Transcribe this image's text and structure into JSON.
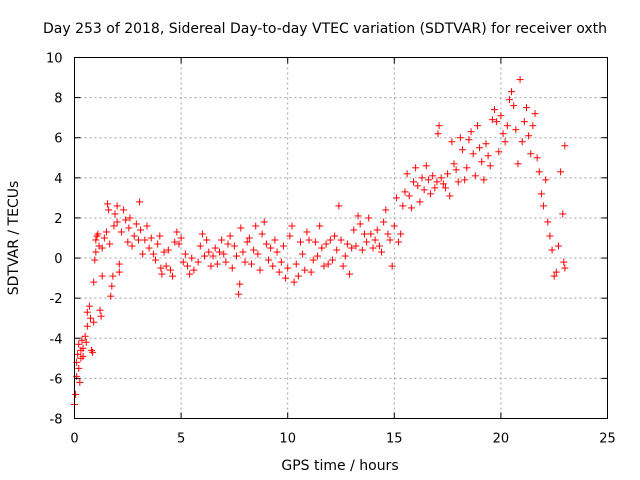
{
  "chart_data": {
    "type": "scatter",
    "title": "Day 253 of 2018, Sidereal Day-to-day VTEC variation (SDTVAR) for receiver oxth",
    "xlabel": "GPS time / hours",
    "ylabel": "SDTVAR / TECUs",
    "xlim": [
      0,
      25
    ],
    "ylim": [
      -8,
      10
    ],
    "xticks": [
      0,
      5,
      10,
      15,
      20,
      25
    ],
    "xtick_labels": [
      "0",
      "5",
      "10",
      "15",
      "20",
      "25"
    ],
    "yticks": [
      -8,
      -6,
      -4,
      -2,
      0,
      2,
      4,
      6,
      8,
      10
    ],
    "ytick_labels": [
      "-8",
      "-6",
      "-4",
      "-2",
      "0",
      "2",
      "4",
      "6",
      "8",
      "10"
    ],
    "grid": true,
    "marker": "+",
    "color": "#ff0000",
    "series": [
      {
        "name": "oxth",
        "points": [
          [
            0.0,
            -7.3
          ],
          [
            0.05,
            -6.8
          ],
          [
            0.1,
            -5.9
          ],
          [
            0.1,
            -5.2
          ],
          [
            0.15,
            -4.8
          ],
          [
            0.2,
            -4.3
          ],
          [
            0.2,
            -5.5
          ],
          [
            0.25,
            -6.2
          ],
          [
            0.3,
            -5.0
          ],
          [
            0.3,
            -4.6
          ],
          [
            0.35,
            -4.1
          ],
          [
            0.4,
            -4.9
          ],
          [
            0.4,
            -4.5
          ],
          [
            0.5,
            -3.9
          ],
          [
            0.55,
            -4.2
          ],
          [
            0.6,
            -3.4
          ],
          [
            0.6,
            -2.7
          ],
          [
            0.7,
            -2.4
          ],
          [
            0.75,
            -3.0
          ],
          [
            0.8,
            -4.6
          ],
          [
            0.85,
            -4.7
          ],
          [
            0.9,
            -3.2
          ],
          [
            0.9,
            -1.2
          ],
          [
            0.95,
            -0.1
          ],
          [
            1.0,
            0.3
          ],
          [
            1.0,
            0.9
          ],
          [
            1.05,
            1.1
          ],
          [
            1.1,
            1.2
          ],
          [
            1.15,
            0.6
          ],
          [
            1.2,
            -2.6
          ],
          [
            1.25,
            -2.9
          ],
          [
            1.3,
            -0.9
          ],
          [
            1.3,
            0.5
          ],
          [
            1.4,
            1.0
          ],
          [
            1.5,
            1.3
          ],
          [
            1.55,
            2.7
          ],
          [
            1.6,
            2.4
          ],
          [
            1.65,
            0.7
          ],
          [
            1.7,
            -1.9
          ],
          [
            1.75,
            -1.4
          ],
          [
            1.8,
            -0.9
          ],
          [
            1.85,
            1.6
          ],
          [
            1.9,
            2.2
          ],
          [
            2.0,
            2.6
          ],
          [
            2.0,
            1.8
          ],
          [
            2.1,
            -0.7
          ],
          [
            2.1,
            -0.3
          ],
          [
            2.2,
            1.3
          ],
          [
            2.3,
            2.4
          ],
          [
            2.4,
            1.9
          ],
          [
            2.5,
            0.8
          ],
          [
            2.55,
            1.5
          ],
          [
            2.6,
            2.0
          ],
          [
            2.7,
            0.6
          ],
          [
            2.8,
            1.1
          ],
          [
            2.9,
            1.7
          ],
          [
            3.0,
            0.9
          ],
          [
            3.05,
            2.8
          ],
          [
            3.1,
            1.4
          ],
          [
            3.2,
            0.2
          ],
          [
            3.3,
            0.9
          ],
          [
            3.4,
            1.6
          ],
          [
            3.5,
            0.5
          ],
          [
            3.6,
            1.0
          ],
          [
            3.7,
            0.2
          ],
          [
            3.8,
            -0.1
          ],
          [
            3.9,
            0.7
          ],
          [
            4.0,
            1.1
          ],
          [
            4.05,
            -0.5
          ],
          [
            4.1,
            -0.8
          ],
          [
            4.2,
            0.3
          ],
          [
            4.3,
            -0.4
          ],
          [
            4.4,
            0.4
          ],
          [
            4.5,
            -0.6
          ],
          [
            4.6,
            -0.9
          ],
          [
            4.7,
            0.8
          ],
          [
            4.8,
            1.3
          ],
          [
            4.9,
            0.7
          ],
          [
            5.0,
            1.0
          ],
          [
            5.1,
            -0.2
          ],
          [
            5.2,
            0.2
          ],
          [
            5.3,
            -0.4
          ],
          [
            5.4,
            -0.8
          ],
          [
            5.5,
            0.0
          ],
          [
            5.6,
            -0.6
          ],
          [
            5.8,
            -0.2
          ],
          [
            5.9,
            0.6
          ],
          [
            6.0,
            1.2
          ],
          [
            6.1,
            0.1
          ],
          [
            6.2,
            0.9
          ],
          [
            6.3,
            0.3
          ],
          [
            6.4,
            -0.4
          ],
          [
            6.5,
            0.1
          ],
          [
            6.6,
            0.5
          ],
          [
            6.7,
            -0.3
          ],
          [
            6.8,
            0.3
          ],
          [
            6.9,
            0.9
          ],
          [
            7.0,
            0.2
          ],
          [
            7.1,
            -0.2
          ],
          [
            7.2,
            0.7
          ],
          [
            7.3,
            1.1
          ],
          [
            7.4,
            -0.5
          ],
          [
            7.5,
            0.6
          ],
          [
            7.6,
            0.1
          ],
          [
            7.7,
            -1.8
          ],
          [
            7.75,
            -1.3
          ],
          [
            7.8,
            1.5
          ],
          [
            7.9,
            0.3
          ],
          [
            8.0,
            -0.2
          ],
          [
            8.1,
            0.8
          ],
          [
            8.2,
            1.0
          ],
          [
            8.3,
            -0.3
          ],
          [
            8.4,
            0.4
          ],
          [
            8.5,
            1.6
          ],
          [
            8.6,
            0.2
          ],
          [
            8.7,
            -0.6
          ],
          [
            8.8,
            1.2
          ],
          [
            8.9,
            1.8
          ],
          [
            9.0,
            0.7
          ],
          [
            9.1,
            -0.1
          ],
          [
            9.2,
            0.5
          ],
          [
            9.3,
            -0.4
          ],
          [
            9.4,
            0.9
          ],
          [
            9.5,
            0.3
          ],
          [
            9.6,
            -0.7
          ],
          [
            9.7,
            -0.2
          ],
          [
            9.8,
            0.6
          ],
          [
            9.9,
            -1.0
          ],
          [
            10.0,
            -0.5
          ],
          [
            10.1,
            1.1
          ],
          [
            10.2,
            1.6
          ],
          [
            10.3,
            -1.2
          ],
          [
            10.4,
            -0.3
          ],
          [
            10.5,
            -0.9
          ],
          [
            10.6,
            0.8
          ],
          [
            10.7,
            0.2
          ],
          [
            10.8,
            -0.6
          ],
          [
            10.9,
            1.3
          ],
          [
            11.0,
            0.9
          ],
          [
            11.1,
            -0.7
          ],
          [
            11.2,
            -0.1
          ],
          [
            11.3,
            0.8
          ],
          [
            11.4,
            0.1
          ],
          [
            11.5,
            1.6
          ],
          [
            11.6,
            0.5
          ],
          [
            11.7,
            -0.4
          ],
          [
            11.8,
            0.7
          ],
          [
            11.9,
            -0.3
          ],
          [
            12.0,
            0.9
          ],
          [
            12.1,
            -0.1
          ],
          [
            12.2,
            1.1
          ],
          [
            12.3,
            0.4
          ],
          [
            12.4,
            2.6
          ],
          [
            12.5,
            0.9
          ],
          [
            12.6,
            -0.4
          ],
          [
            12.7,
            0.1
          ],
          [
            12.8,
            0.7
          ],
          [
            12.9,
            -0.8
          ],
          [
            13.0,
            0.5
          ],
          [
            13.1,
            1.4
          ],
          [
            13.2,
            0.6
          ],
          [
            13.3,
            2.1
          ],
          [
            13.4,
            1.7
          ],
          [
            13.5,
            0.4
          ],
          [
            13.6,
            1.2
          ],
          [
            13.7,
            0.8
          ],
          [
            13.8,
            2.0
          ],
          [
            13.9,
            1.2
          ],
          [
            14.0,
            0.5
          ],
          [
            14.1,
            0.9
          ],
          [
            14.2,
            1.4
          ],
          [
            14.3,
            0.6
          ],
          [
            14.4,
            0.3
          ],
          [
            14.5,
            1.8
          ],
          [
            14.6,
            2.4
          ],
          [
            14.7,
            1.2
          ],
          [
            14.8,
            0.9
          ],
          [
            14.9,
            -0.4
          ],
          [
            15.0,
            1.6
          ],
          [
            15.1,
            3.0
          ],
          [
            15.2,
            0.8
          ],
          [
            15.3,
            1.2
          ],
          [
            15.4,
            2.6
          ],
          [
            15.5,
            3.3
          ],
          [
            15.6,
            4.2
          ],
          [
            15.7,
            3.1
          ],
          [
            15.8,
            2.5
          ],
          [
            15.9,
            3.8
          ],
          [
            16.0,
            4.5
          ],
          [
            16.1,
            3.6
          ],
          [
            16.2,
            2.8
          ],
          [
            16.3,
            4.0
          ],
          [
            16.4,
            3.4
          ],
          [
            16.5,
            4.6
          ],
          [
            16.6,
            3.9
          ],
          [
            16.7,
            3.2
          ],
          [
            16.8,
            4.1
          ],
          [
            16.9,
            3.5
          ],
          [
            17.0,
            3.8
          ],
          [
            17.05,
            6.2
          ],
          [
            17.1,
            6.6
          ],
          [
            17.2,
            4.0
          ],
          [
            17.3,
            3.7
          ],
          [
            17.4,
            3.5
          ],
          [
            17.5,
            4.2
          ],
          [
            17.6,
            3.1
          ],
          [
            17.7,
            5.8
          ],
          [
            17.8,
            4.7
          ],
          [
            17.9,
            4.4
          ],
          [
            18.0,
            3.8
          ],
          [
            18.1,
            6.0
          ],
          [
            18.2,
            5.4
          ],
          [
            18.3,
            3.9
          ],
          [
            18.4,
            4.5
          ],
          [
            18.5,
            5.9
          ],
          [
            18.6,
            6.3
          ],
          [
            18.7,
            5.2
          ],
          [
            18.8,
            4.1
          ],
          [
            18.9,
            6.6
          ],
          [
            19.0,
            5.5
          ],
          [
            19.1,
            4.8
          ],
          [
            19.2,
            3.9
          ],
          [
            19.3,
            5.7
          ],
          [
            19.4,
            5.1
          ],
          [
            19.5,
            4.6
          ],
          [
            19.6,
            6.9
          ],
          [
            19.7,
            7.4
          ],
          [
            19.8,
            6.8
          ],
          [
            19.9,
            5.3
          ],
          [
            20.0,
            7.1
          ],
          [
            20.1,
            6.2
          ],
          [
            20.2,
            5.8
          ],
          [
            20.3,
            6.6
          ],
          [
            20.4,
            7.9
          ],
          [
            20.5,
            8.3
          ],
          [
            20.6,
            7.6
          ],
          [
            20.7,
            6.4
          ],
          [
            20.8,
            4.7
          ],
          [
            20.9,
            8.9
          ],
          [
            21.0,
            5.8
          ],
          [
            21.1,
            6.8
          ],
          [
            21.2,
            7.5
          ],
          [
            21.3,
            6.1
          ],
          [
            21.4,
            5.2
          ],
          [
            21.5,
            6.6
          ],
          [
            21.6,
            7.2
          ],
          [
            21.7,
            5.0
          ],
          [
            21.8,
            4.3
          ],
          [
            21.9,
            3.2
          ],
          [
            22.0,
            2.6
          ],
          [
            22.1,
            3.9
          ],
          [
            22.2,
            1.8
          ],
          [
            22.3,
            1.1
          ],
          [
            22.4,
            0.4
          ],
          [
            22.5,
            -0.9
          ],
          [
            22.6,
            -0.7
          ],
          [
            22.7,
            0.6
          ],
          [
            22.8,
            4.3
          ],
          [
            22.9,
            2.2
          ],
          [
            23.0,
            5.6
          ],
          [
            22.95,
            -0.2
          ],
          [
            23.0,
            -0.5
          ]
        ]
      }
    ]
  }
}
